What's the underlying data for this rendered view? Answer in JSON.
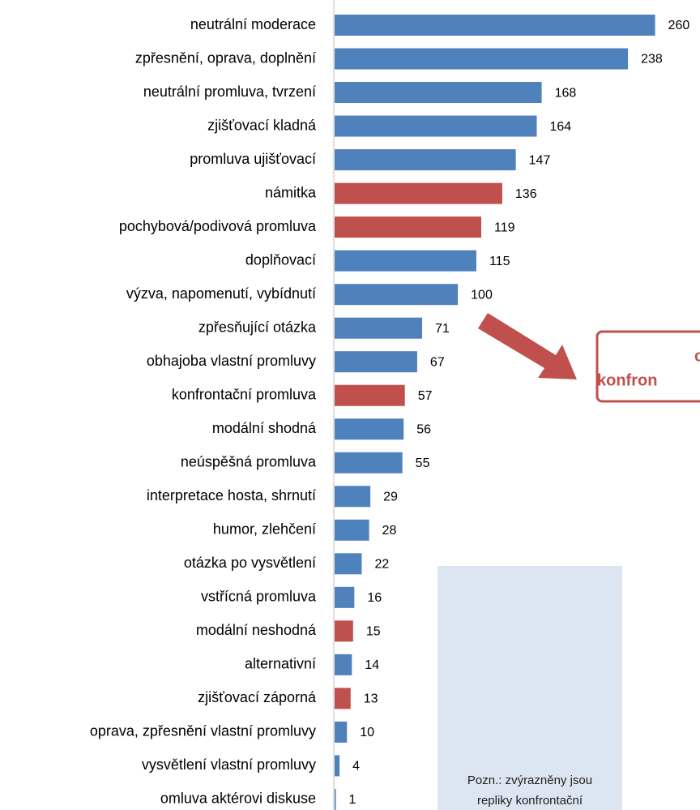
{
  "chart_data": {
    "type": "bar",
    "orientation": "horizontal",
    "categories": [
      "neutrální moderace",
      "zpřesnění, oprava, doplnění",
      "neutrální promluva, tvrzení",
      "zjišťovací kladná",
      "promluva ujišťovací",
      "námitka",
      "pochybová/podivová promluva",
      "doplňovací",
      "výzva, napomenutí, vybídnutí",
      "zpřesňující otázka",
      "obhajoba vlastní promluvy",
      "konfrontační promluva",
      "modální shodná",
      "neúspěšná promluva",
      "interpretace hosta, shrnutí",
      "humor, zlehčení",
      "otázka po vysvětlení",
      "vstřícná promluva",
      "modální neshodná",
      "alternativní",
      "zjišťovací záporná",
      "oprava, zpřesnění vlastní promluvy",
      "vysvětlení vlastní promluvy",
      "omluva aktérovi diskuse"
    ],
    "values": [
      260,
      238,
      168,
      164,
      147,
      136,
      119,
      115,
      100,
      71,
      67,
      57,
      56,
      55,
      29,
      28,
      22,
      16,
      15,
      14,
      13,
      10,
      4,
      1
    ],
    "colors": [
      "#4f81bd",
      "#4f81bd",
      "#4f81bd",
      "#4f81bd",
      "#4f81bd",
      "#c0504d",
      "#c0504d",
      "#4f81bd",
      "#4f81bd",
      "#4f81bd",
      "#4f81bd",
      "#c0504d",
      "#4f81bd",
      "#4f81bd",
      "#4f81bd",
      "#4f81bd",
      "#4f81bd",
      "#4f81bd",
      "#c0504d",
      "#4f81bd",
      "#c0504d",
      "#4f81bd",
      "#4f81bd",
      "#4f81bd"
    ],
    "xlim": [
      0,
      280
    ],
    "callout_lines": [
      "c",
      "konfron"
    ],
    "note_lines": [
      "Pozn.: zvýrazněny jsou",
      "repliky konfrontační"
    ]
  }
}
